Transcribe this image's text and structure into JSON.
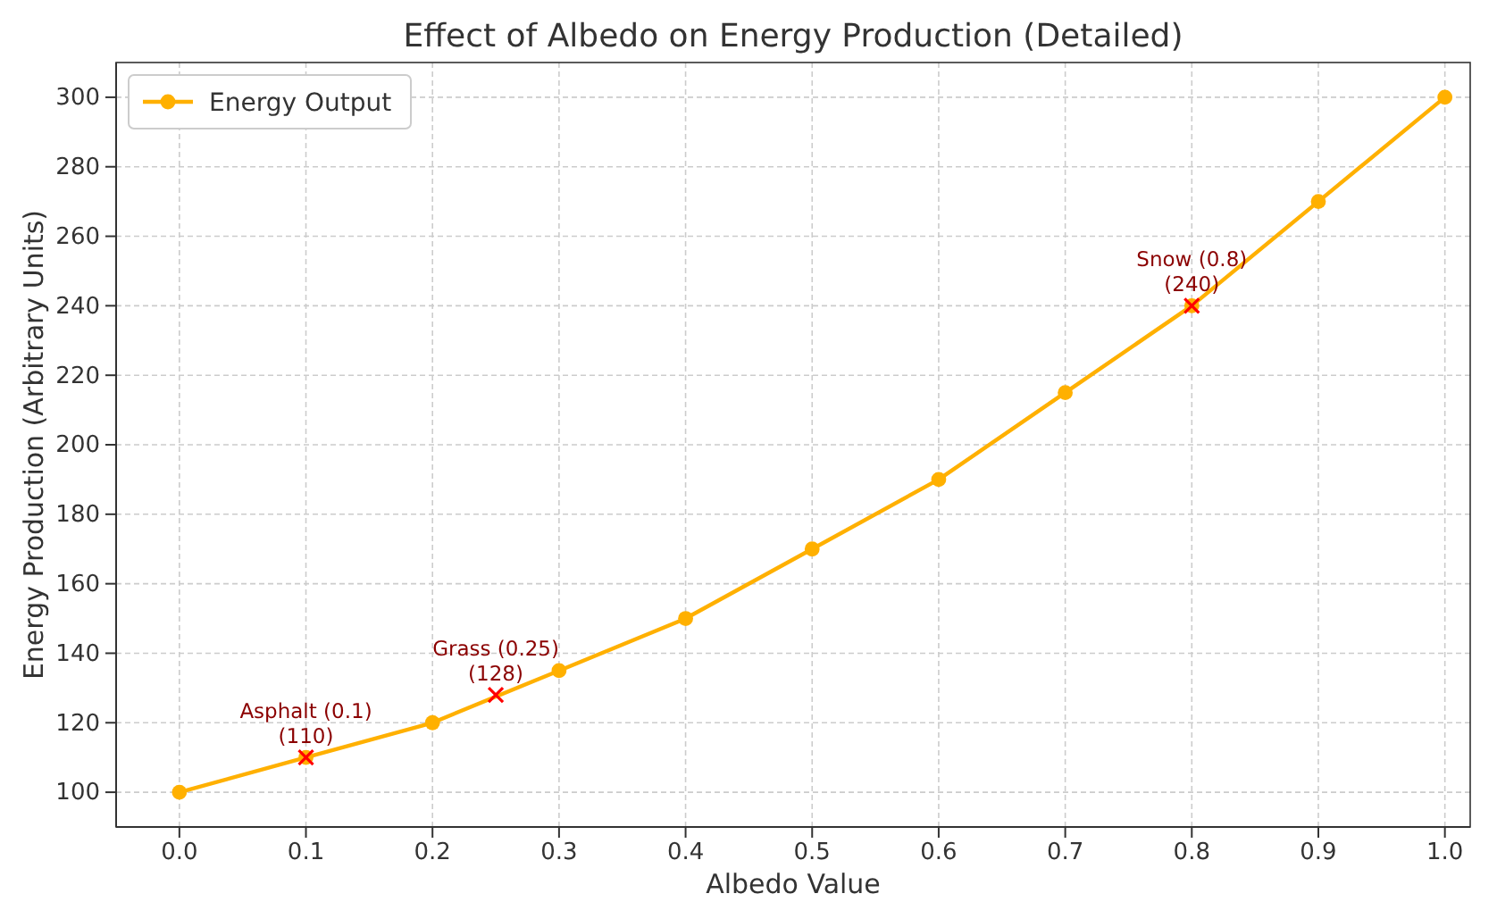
{
  "chart_data": {
    "type": "line",
    "title": "Effect of Albedo on Energy Production (Detailed)",
    "xlabel": "Albedo Value",
    "ylabel": "Energy Production (Arbitrary Units)",
    "series": [
      {
        "name": "Energy Output",
        "color": "#ffb000",
        "x": [
          0,
          0.1,
          0.2,
          0.3,
          0.4,
          0.5,
          0.6,
          0.7,
          0.8,
          0.9,
          1.0
        ],
        "values": [
          100,
          110,
          120,
          135,
          150,
          170,
          190,
          215,
          240,
          270,
          300
        ],
        "marker": "circle"
      },
      {
        "type": "scatter",
        "color": "#ff0000",
        "x": [
          0.1,
          0.25,
          0.8
        ],
        "values": [
          110,
          128,
          240
        ],
        "marker": "cross"
      }
    ],
    "annotations": [
      {
        "text": "Asphalt (0.1)\n(110)",
        "x": 0.1,
        "y": 110
      },
      {
        "text": "Grass (0.25)\n(128)",
        "x": 0.25,
        "y": 128
      },
      {
        "text": "Snow (0.8)\n(240)",
        "x": 0.8,
        "y": 240
      }
    ],
    "xlim": [
      -0.05,
      1.02
    ],
    "xticks": [
      {
        "value": 0,
        "label": "0.0"
      },
      {
        "value": 0.1,
        "label": "0.1"
      },
      {
        "value": 0.2,
        "label": "0.2"
      },
      {
        "value": 0.3,
        "label": "0.3"
      },
      {
        "value": 0.4,
        "label": "0.4"
      },
      {
        "value": 0.5,
        "label": "0.5"
      },
      {
        "value": 0.6,
        "label": "0.6"
      },
      {
        "value": 0.7,
        "label": "0.7"
      },
      {
        "value": 0.8,
        "label": "0.8"
      },
      {
        "value": 0.9,
        "label": "0.9"
      },
      {
        "value": 1.0,
        "label": "1.0"
      }
    ],
    "ylim": [
      90,
      310
    ],
    "yticks": [
      100,
      120,
      140,
      160,
      180,
      200,
      220,
      240,
      260,
      280,
      300
    ],
    "grid": true,
    "legend": "top left"
  }
}
